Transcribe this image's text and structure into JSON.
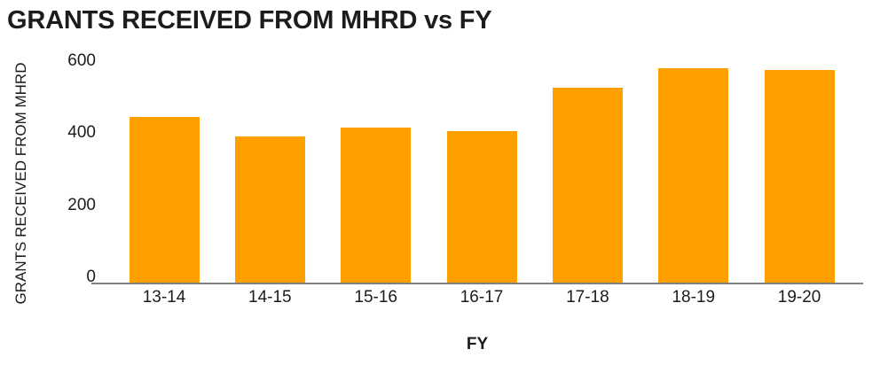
{
  "page": {
    "background": "#ffffff"
  },
  "chart_data": {
    "type": "bar",
    "title": "GRANTS RECEIVED FROM MHRD vs FY",
    "xlabel": "FY",
    "ylabel": "GRANTS RECEIVED FROM MHRD",
    "categories": [
      "13-14",
      "14-15",
      "15-16",
      "16-17",
      "17-18",
      "18-19",
      "19-20"
    ],
    "values": [
      460,
      405,
      430,
      420,
      540,
      595,
      590
    ],
    "yticks": [
      0,
      200,
      400,
      600
    ],
    "ylim": [
      0,
      600
    ],
    "grid": false,
    "legend": "none",
    "bar_color": "#ffa000",
    "axis_line_color": "#7f7f7f",
    "text_color": "#1c1c1c"
  }
}
